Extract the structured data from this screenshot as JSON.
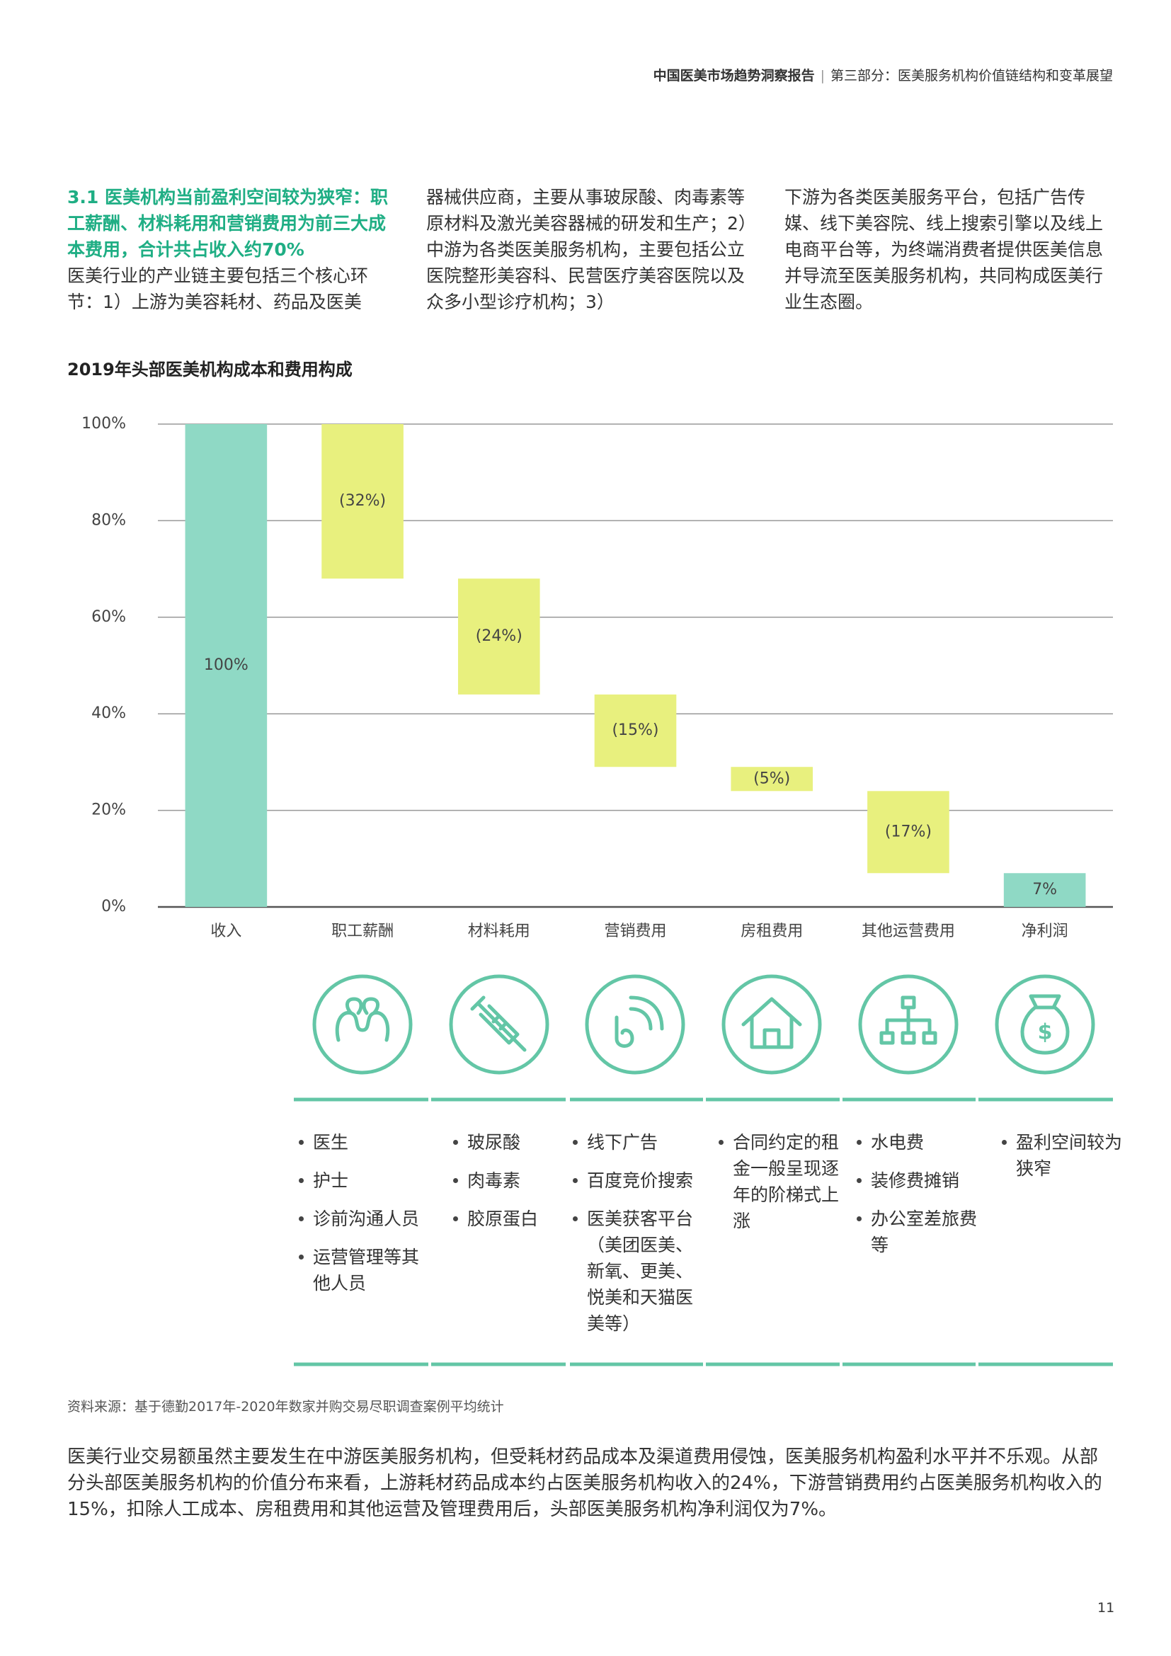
{
  "header": {
    "title": "中国医美市场趋势洞察报告",
    "section": "第三部分：医美服务机构价值链结构和变革展望"
  },
  "intro": {
    "heading": "3.1 医美机构当前盈利空间较为狭窄：职工薪酬、材料耗用和营销费用为前三大成本费用，合计共占收入约70%",
    "columns": [
      "医美行业的产业链主要包括三个核心环节：1）上游为美容耗材、药品及医美",
      "器械供应商，主要从事玻尿酸、肉毒素等原材料及激光美容器械的研发和生产；2）中游为各类医美服务机构，主要包括公立医院整形美容科、民营医疗美容医院以及众多小型诊疗机构；3）",
      "下游为各类医美服务平台，包括广告传媒、线下美容院、线上搜索引擎以及线上电商平台等，为终端消费者提供医美信息并导流至医美服务机构，共同构成医美行业生态圈。"
    ]
  },
  "chart_data": {
    "type": "waterfall",
    "title": "2019年头部医美机构成本和费用构成",
    "categories": [
      "收入",
      "职工薪酬",
      "材料耗用",
      "营销费用",
      "房租费用",
      "其他运营费用",
      "净利润"
    ],
    "values": [
      100,
      -32,
      -24,
      -15,
      -5,
      -17,
      7
    ],
    "value_labels": [
      "100%",
      "(32%)",
      "(24%)",
      "(15%)",
      "(5%)",
      "(17%)",
      "7%"
    ],
    "measure": [
      "absolute",
      "relative",
      "relative",
      "relative",
      "relative",
      "relative",
      "absolute"
    ],
    "total_color": "#8fd9c5",
    "change_color": "#e8f07e",
    "ylim": [
      0,
      100
    ],
    "yticks": [
      {
        "value": 0,
        "label": "0%"
      },
      {
        "value": 20,
        "label": "20%"
      },
      {
        "value": 40,
        "label": "40%"
      },
      {
        "value": 60,
        "label": "60%"
      },
      {
        "value": 80,
        "label": "80%"
      },
      {
        "value": 100,
        "label": "100%"
      }
    ],
    "grid": true
  },
  "details": [
    [
      "医生",
      "护士",
      "诊前沟通人员",
      "运营管理等其他人员"
    ],
    [
      "玻尿酸",
      "肉毒素",
      "胶原蛋白"
    ],
    [
      "线下广告",
      "百度竞价搜索",
      "医美获客平台（美团医美、新氧、更美、悦美和天猫医美等）"
    ],
    [
      "合同约定的租金一般呈现逐年的阶梯式上涨"
    ],
    [
      "水电费",
      "装修费摊销",
      "办公室差旅费等"
    ],
    [
      "盈利空间较为狭窄"
    ]
  ],
  "source": "资料来源：基于德勤2017年-2020年数家并购交易尽职调查案例平均统计",
  "summary": "医美行业交易额虽然主要发生在中游医美服务机构，但受耗材药品成本及渠道费用侵蚀，医美服务机构盈利水平并不乐观。从部分头部医美服务机构的价值分布来看，上游耗材药品成本约占医美服务机构收入的24%，下游营销费用约占医美服务机构收入的15%，扣除人工成本、房租费用和其他运营及管理费用后，头部医美服务机构净利润仅为7%。",
  "page_number": "11"
}
